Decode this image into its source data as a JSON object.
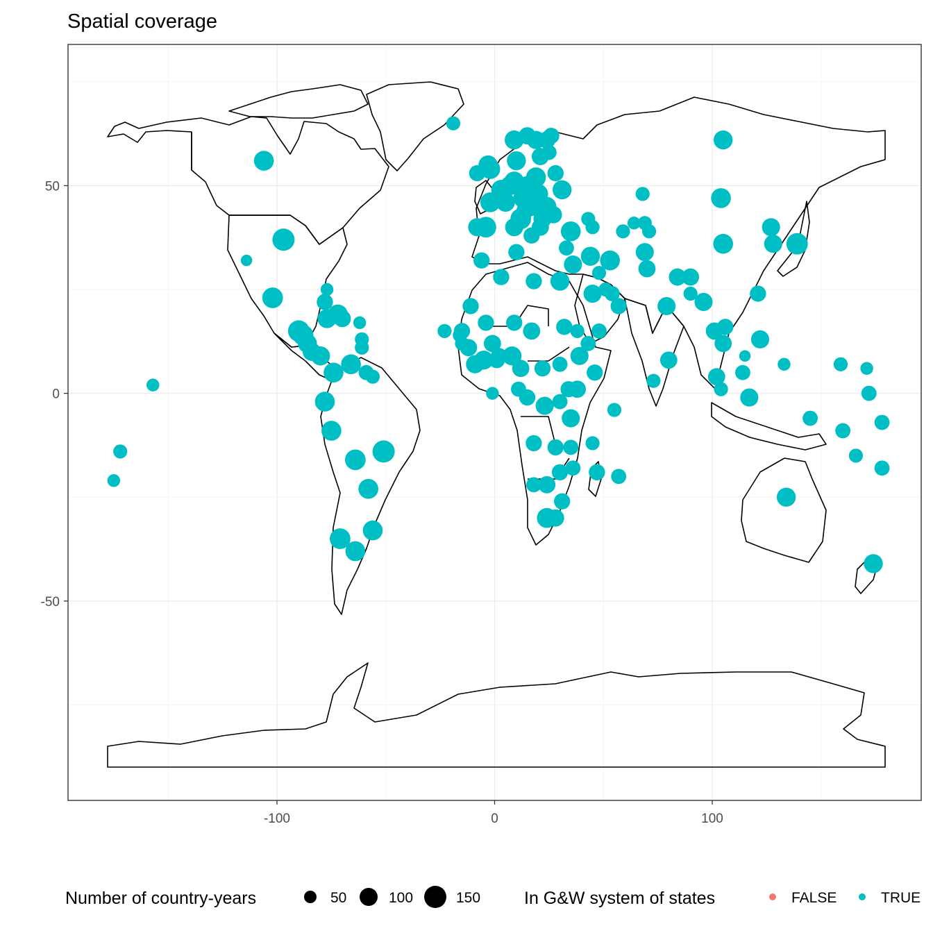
{
  "chart_data": {
    "type": "scatter",
    "title": "Spatial coverage",
    "xlabel": "",
    "ylabel": "",
    "xlim": [
      -196,
      196
    ],
    "ylim": [
      -98,
      84
    ],
    "x_ticks": [
      -100,
      0,
      100
    ],
    "x_tick_labels": [
      "-100",
      "0",
      "100"
    ],
    "y_ticks": [
      -50,
      0,
      50
    ],
    "y_tick_labels": [
      "-50",
      "0",
      "50"
    ],
    "grid": true,
    "legend_placement": "bottom",
    "size_legend": {
      "title": "Number of country-years",
      "values": [
        50,
        100,
        150
      ],
      "labels": [
        "50",
        "100",
        "150"
      ]
    },
    "color_legend": {
      "title": "In G&W system of states",
      "entries": [
        {
          "label": "FALSE",
          "color": "#F8766D"
        },
        {
          "label": "TRUE",
          "color": "#00BFC4"
        }
      ]
    },
    "series": [
      {
        "name": "TRUE",
        "color": "#00BFC4",
        "points": [
          [
            -106,
            56,
            120
          ],
          [
            -97,
            37,
            150
          ],
          [
            -102,
            23,
            130
          ],
          [
            -114,
            32,
            40
          ],
          [
            -90,
            15,
            140
          ],
          [
            -88,
            14,
            130
          ],
          [
            -86,
            12,
            110
          ],
          [
            -84,
            10,
            100
          ],
          [
            -80,
            9,
            110
          ],
          [
            -78,
            22,
            80
          ],
          [
            -77,
            18,
            110
          ],
          [
            -72,
            19,
            120
          ],
          [
            -70,
            18,
            90
          ],
          [
            -61,
            13,
            60
          ],
          [
            -62,
            17,
            50
          ],
          [
            -61,
            11,
            60
          ],
          [
            -77,
            25,
            50
          ],
          [
            -74,
            5,
            120
          ],
          [
            -66,
            7,
            120
          ],
          [
            -59,
            5,
            70
          ],
          [
            -56,
            4,
            60
          ],
          [
            -78,
            -2,
            120
          ],
          [
            -75,
            -9,
            120
          ],
          [
            -64,
            -16,
            130
          ],
          [
            -51,
            -14,
            150
          ],
          [
            -58,
            -23,
            120
          ],
          [
            -56,
            -33,
            120
          ],
          [
            -71,
            -35,
            130
          ],
          [
            -64,
            -38,
            120
          ],
          [
            -157,
            2,
            50
          ],
          [
            -172,
            -14,
            60
          ],
          [
            -175,
            -21,
            50
          ],
          [
            -19,
            65,
            60
          ],
          [
            -8,
            53,
            80
          ],
          [
            -3,
            55,
            110
          ],
          [
            -2,
            54,
            120
          ],
          [
            -4,
            40,
            130
          ],
          [
            -8,
            40,
            100
          ],
          [
            -2,
            46,
            120
          ],
          [
            5,
            46,
            110
          ],
          [
            9,
            51,
            120
          ],
          [
            10,
            56,
            110
          ],
          [
            9,
            61,
            110
          ],
          [
            15,
            62,
            90
          ],
          [
            19,
            61,
            100
          ],
          [
            24,
            61,
            90
          ],
          [
            26,
            62,
            80
          ],
          [
            21,
            57,
            90
          ],
          [
            25,
            58,
            70
          ],
          [
            28,
            53,
            80
          ],
          [
            31,
            49,
            110
          ],
          [
            19,
            52,
            120
          ],
          [
            15,
            50,
            110
          ],
          [
            20,
            48,
            120
          ],
          [
            17,
            45,
            110
          ],
          [
            24,
            45,
            110
          ],
          [
            22,
            42,
            100
          ],
          [
            21,
            40,
            90
          ],
          [
            27,
            43,
            90
          ],
          [
            12,
            42,
            130
          ],
          [
            9,
            40,
            100
          ],
          [
            14,
            44,
            90
          ],
          [
            3,
            49,
            120
          ],
          [
            7,
            50,
            110
          ],
          [
            13,
            47,
            110
          ],
          [
            17,
            38,
            80
          ],
          [
            10,
            34,
            80
          ],
          [
            3,
            28,
            80
          ],
          [
            -6,
            32,
            80
          ],
          [
            -11,
            21,
            80
          ],
          [
            -15,
            15,
            80
          ],
          [
            -16,
            14,
            60
          ],
          [
            -15,
            12,
            60
          ],
          [
            -12,
            11,
            90
          ],
          [
            -9,
            7,
            100
          ],
          [
            -5,
            8,
            110
          ],
          [
            -1,
            12,
            90
          ],
          [
            -4,
            17,
            80
          ],
          [
            1,
            8,
            80
          ],
          [
            2,
            9,
            80
          ],
          [
            8,
            9,
            110
          ],
          [
            9,
            17,
            80
          ],
          [
            17,
            15,
            90
          ],
          [
            18,
            27,
            80
          ],
          [
            30,
            27,
            110
          ],
          [
            32,
            16,
            80
          ],
          [
            30,
            7,
            70
          ],
          [
            38,
            15,
            60
          ],
          [
            39,
            9,
            100
          ],
          [
            46,
            5,
            80
          ],
          [
            43,
            12,
            70
          ],
          [
            38,
            1,
            90
          ],
          [
            22,
            6,
            80
          ],
          [
            11,
            1,
            70
          ],
          [
            12,
            6,
            90
          ],
          [
            15,
            -1,
            80
          ],
          [
            23,
            -3,
            100
          ],
          [
            30,
            -2,
            70
          ],
          [
            34,
            1,
            80
          ],
          [
            35,
            -6,
            100
          ],
          [
            18,
            -12,
            80
          ],
          [
            28,
            -13,
            80
          ],
          [
            35,
            -13,
            70
          ],
          [
            30,
            -19,
            80
          ],
          [
            24,
            -22,
            90
          ],
          [
            18,
            -22,
            70
          ],
          [
            24,
            -30,
            120
          ],
          [
            31,
            -26,
            80
          ],
          [
            28,
            -30,
            90
          ],
          [
            36,
            -18,
            70
          ],
          [
            47,
            -19,
            80
          ],
          [
            57,
            -20,
            70
          ],
          [
            45,
            -12,
            60
          ],
          [
            55,
            -4,
            60
          ],
          [
            33,
            35,
            70
          ],
          [
            35,
            39,
            120
          ],
          [
            36,
            31,
            100
          ],
          [
            44,
            33,
            110
          ],
          [
            48,
            29,
            60
          ],
          [
            45,
            24,
            100
          ],
          [
            51,
            25,
            60
          ],
          [
            54,
            24,
            70
          ],
          [
            57,
            21,
            80
          ],
          [
            48,
            15,
            70
          ],
          [
            53,
            32,
            120
          ],
          [
            43,
            42,
            60
          ],
          [
            45,
            40,
            60
          ],
          [
            59,
            39,
            60
          ],
          [
            64,
            41,
            50
          ],
          [
            69,
            41,
            60
          ],
          [
            71,
            39,
            60
          ],
          [
            68,
            48,
            60
          ],
          [
            69,
            34,
            100
          ],
          [
            70,
            30,
            90
          ],
          [
            79,
            21,
            100
          ],
          [
            84,
            28,
            90
          ],
          [
            80,
            8,
            90
          ],
          [
            90,
            28,
            90
          ],
          [
            90,
            24,
            60
          ],
          [
            96,
            22,
            100
          ],
          [
            101,
            15,
            90
          ],
          [
            106,
            16,
            80
          ],
          [
            105,
            12,
            90
          ],
          [
            104,
            47,
            120
          ],
          [
            105,
            36,
            120
          ],
          [
            105,
            61,
            110
          ],
          [
            127,
            40,
            100
          ],
          [
            128,
            36,
            100
          ],
          [
            139,
            36,
            140
          ],
          [
            121,
            24,
            80
          ],
          [
            122,
            13,
            100
          ],
          [
            114,
            5,
            70
          ],
          [
            102,
            4,
            90
          ],
          [
            104,
            1,
            60
          ],
          [
            117,
            -1,
            100
          ],
          [
            133,
            7,
            50
          ],
          [
            134,
            -25,
            110
          ],
          [
            145,
            -6,
            70
          ],
          [
            160,
            -9,
            70
          ],
          [
            166,
            -15,
            60
          ],
          [
            172,
            0,
            70
          ],
          [
            159,
            7,
            60
          ],
          [
            171,
            6,
            50
          ],
          [
            178,
            -7,
            70
          ],
          [
            178,
            -18,
            70
          ],
          [
            174,
            -41,
            110
          ],
          [
            -23,
            15,
            60
          ],
          [
            -1,
            0,
            50
          ],
          [
            73,
            3,
            60
          ],
          [
            115,
            9,
            40
          ]
        ]
      }
    ]
  }
}
